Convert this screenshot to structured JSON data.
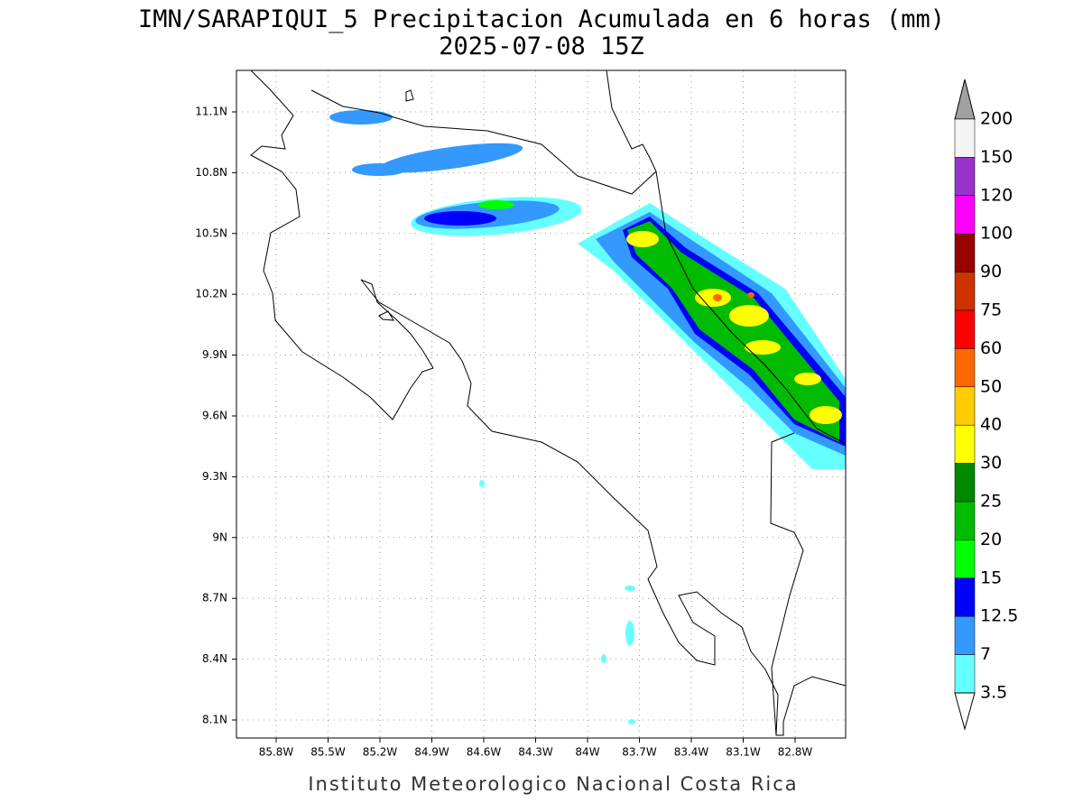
{
  "header": {
    "title": "IMN/SARAPIQUI_5 Precipitacion Acumulada en 6 horas (mm)",
    "subtitle": "2025-07-08 15Z"
  },
  "map": {
    "lon_labels": [
      "85.8W",
      "85.5W",
      "85.2W",
      "84.9W",
      "84.6W",
      "84.3W",
      "84W",
      "83.7W",
      "83.4W",
      "83.1W",
      "82.8W"
    ],
    "lat_labels": [
      "11.1N",
      "10.8N",
      "10.5N",
      "10.2N",
      "9.9N",
      "9.6N",
      "9.3N",
      "9N",
      "8.7N",
      "8.4N",
      "8.1N"
    ]
  },
  "colorbar": {
    "levels": [
      200,
      150,
      120,
      100,
      90,
      75,
      60,
      50,
      40,
      30,
      25,
      20,
      15,
      12.5,
      7,
      3.5
    ],
    "over_color": "#a0a0a0",
    "under_color": "#ffffff",
    "colors": [
      "#f4f4f4",
      "#9933cc",
      "#ff00ff",
      "#990000",
      "#cc3300",
      "#ff0000",
      "#ff6600",
      "#ffcc00",
      "#ffff00",
      "#008800",
      "#00bb00",
      "#00ff00",
      "#0000ff",
      "#3399ff",
      "#66ffff"
    ]
  },
  "footer": "Instituto Meteorologico Nacional Costa Rica"
}
